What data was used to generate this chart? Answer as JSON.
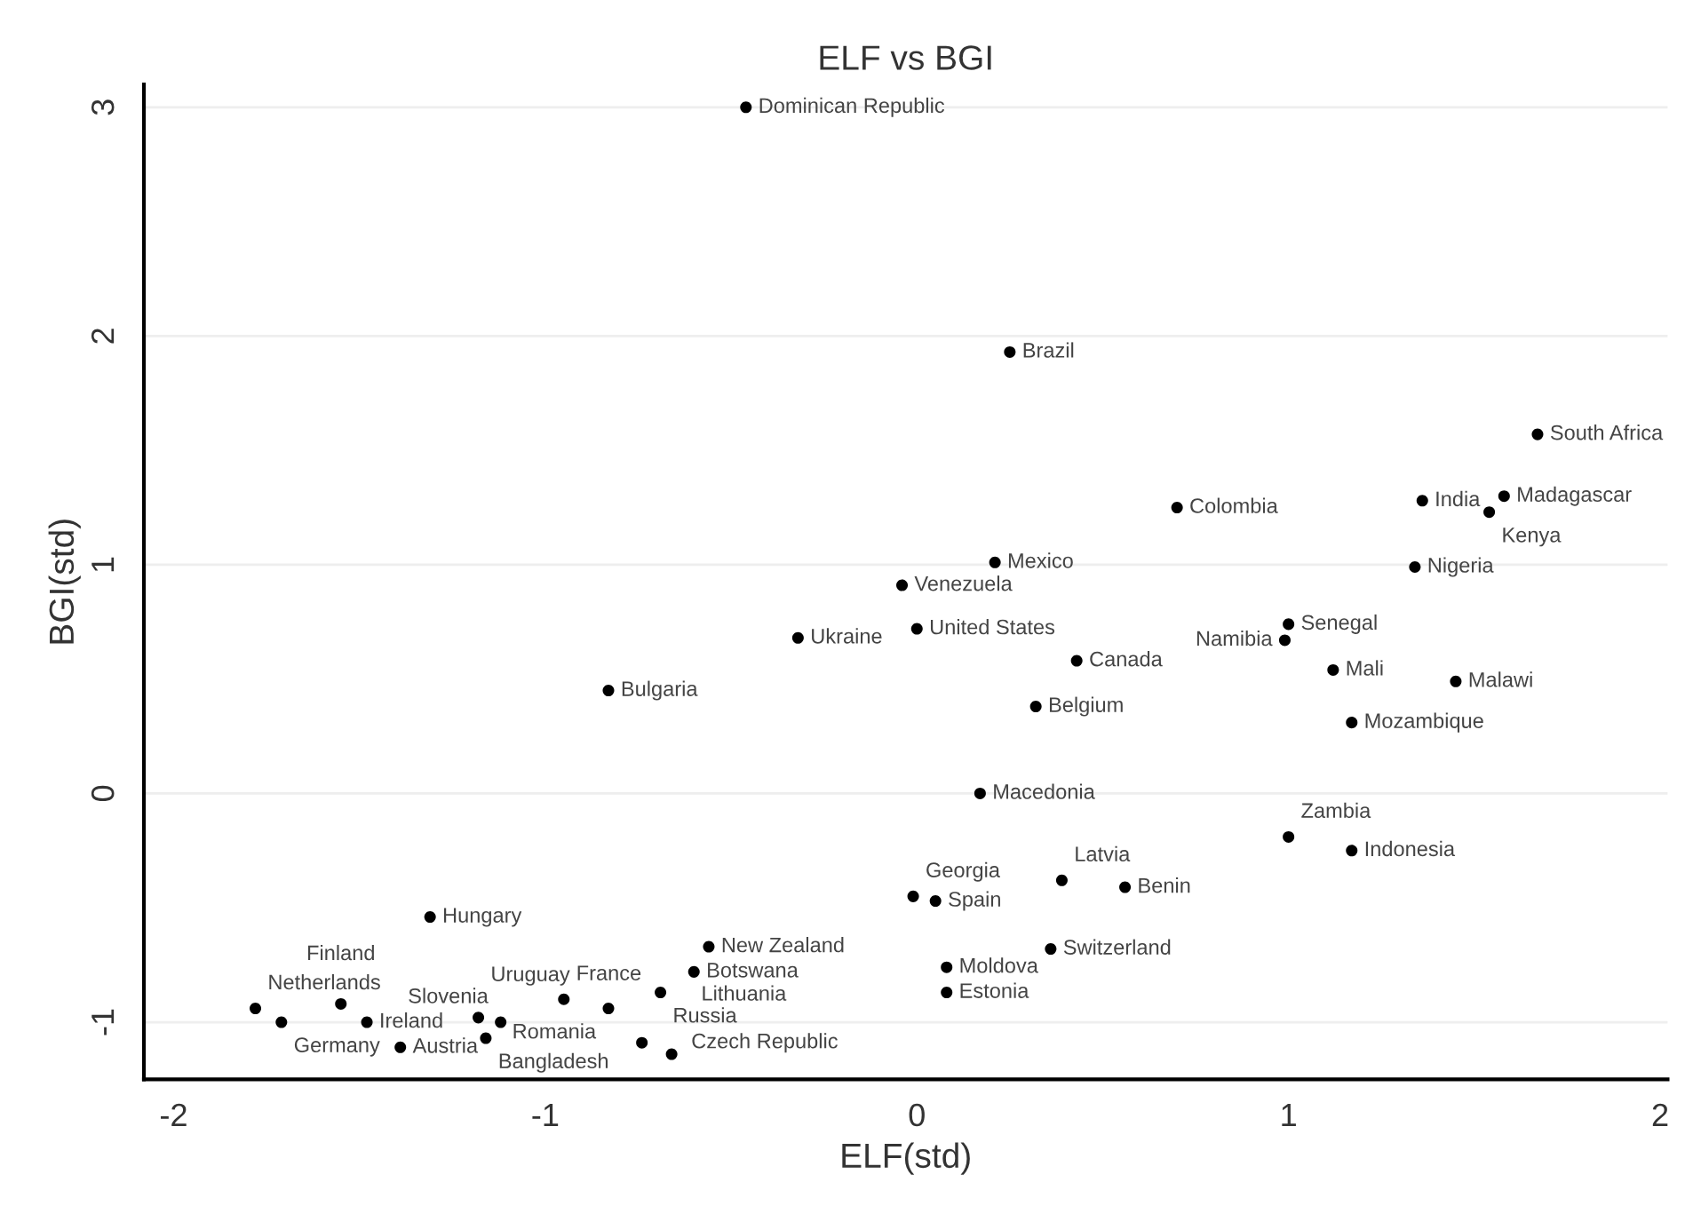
{
  "chart_data": {
    "type": "scatter",
    "title": "ELF vs BGI",
    "xlabel": "ELF(std)",
    "ylabel": "BGI(std)",
    "xlim": [
      -2.08,
      2.02
    ],
    "ylim": [
      -1.25,
      3.1
    ],
    "xticks": [
      -2,
      -1,
      0,
      1,
      2
    ],
    "yticks": [
      -1,
      0,
      1,
      2,
      3
    ],
    "grid": "y",
    "marker": "circle",
    "legend": false,
    "series": [
      {
        "color": "#000000",
        "x": [
          -0.46,
          0.25,
          1.67,
          1.36,
          1.58,
          1.54,
          0.7,
          1.34,
          0.21,
          -0.04,
          -0.32,
          0.0,
          1.0,
          0.99,
          0.43,
          1.12,
          1.45,
          -0.83,
          0.32,
          1.17,
          0.17,
          1.0,
          1.17,
          -0.01,
          0.05,
          0.39,
          0.56,
          0.36,
          0.08,
          0.08,
          -1.31,
          -0.56,
          -0.6,
          -0.69,
          -0.83,
          -0.95,
          -1.12,
          -1.18,
          -1.16,
          -0.74,
          -0.66,
          -1.78,
          -1.71,
          -1.55,
          -1.48,
          -1.39
        ],
        "values": [
          3.0,
          1.93,
          1.57,
          1.28,
          1.3,
          1.23,
          1.25,
          0.99,
          1.01,
          0.91,
          0.68,
          0.72,
          0.74,
          0.67,
          0.58,
          0.54,
          0.49,
          0.45,
          0.38,
          0.31,
          0.0,
          -0.19,
          -0.25,
          -0.45,
          -0.47,
          -0.38,
          -0.41,
          -0.68,
          -0.76,
          -0.87,
          -0.54,
          -0.67,
          -0.78,
          -0.87,
          -0.94,
          -0.9,
          -1.0,
          -0.98,
          -1.07,
          -1.09,
          -1.14,
          -0.94,
          -1.0,
          -0.92,
          -1.0,
          -1.11
        ]
      }
    ],
    "annotations": [
      {
        "text": "Dominican Republic",
        "x": -0.46,
        "y": 3.0
      },
      {
        "text": "Brazil",
        "x": 0.25,
        "y": 1.93
      },
      {
        "text": "South Africa",
        "x": 1.67,
        "y": 1.57
      },
      {
        "text": "India",
        "x": 1.36,
        "y": 1.28
      },
      {
        "text": "Madagascar",
        "x": 1.58,
        "y": 1.3
      },
      {
        "text": "Kenya",
        "x": 1.54,
        "y": 1.23
      },
      {
        "text": "Colombia",
        "x": 0.7,
        "y": 1.25
      },
      {
        "text": "Nigeria",
        "x": 1.34,
        "y": 0.99
      },
      {
        "text": "Mexico",
        "x": 0.21,
        "y": 1.01
      },
      {
        "text": "Venezuela",
        "x": -0.04,
        "y": 0.91
      },
      {
        "text": "Ukraine",
        "x": -0.32,
        "y": 0.68
      },
      {
        "text": "United States",
        "x": 0.0,
        "y": 0.72
      },
      {
        "text": "Senegal",
        "x": 1.0,
        "y": 0.74
      },
      {
        "text": "Namibia",
        "x": 0.99,
        "y": 0.67
      },
      {
        "text": "Canada",
        "x": 0.43,
        "y": 0.58
      },
      {
        "text": "Mali",
        "x": 1.12,
        "y": 0.54
      },
      {
        "text": "Malawi",
        "x": 1.45,
        "y": 0.49
      },
      {
        "text": "Bulgaria",
        "x": -0.83,
        "y": 0.45
      },
      {
        "text": "Belgium",
        "x": 0.32,
        "y": 0.38
      },
      {
        "text": "Mozambique",
        "x": 1.17,
        "y": 0.31
      },
      {
        "text": "Macedonia",
        "x": 0.17,
        "y": 0.0
      },
      {
        "text": "Zambia",
        "x": 1.0,
        "y": -0.19
      },
      {
        "text": "Indonesia",
        "x": 1.17,
        "y": -0.25
      },
      {
        "text": "Georgia",
        "x": -0.01,
        "y": -0.45
      },
      {
        "text": "Spain",
        "x": 0.05,
        "y": -0.47
      },
      {
        "text": "Latvia",
        "x": 0.39,
        "y": -0.38
      },
      {
        "text": "Benin",
        "x": 0.56,
        "y": -0.41
      },
      {
        "text": "Switzerland",
        "x": 0.36,
        "y": -0.68
      },
      {
        "text": "Moldova",
        "x": 0.08,
        "y": -0.76
      },
      {
        "text": "Estonia",
        "x": 0.08,
        "y": -0.87
      },
      {
        "text": "Hungary",
        "x": -1.31,
        "y": -0.54
      },
      {
        "text": "New Zealand",
        "x": -0.56,
        "y": -0.67
      },
      {
        "text": "Botswana",
        "x": -0.6,
        "y": -0.78
      },
      {
        "text": "Russia",
        "x": -0.69,
        "y": -0.87
      },
      {
        "text": "Romania",
        "x": -0.83,
        "y": -0.94
      },
      {
        "text": "France",
        "x": -0.95,
        "y": -0.9
      },
      {
        "text": "Slovenia",
        "x": -1.12,
        "y": -1.0
      },
      {
        "text": "Uruguay",
        "x": -1.18,
        "y": -0.98
      },
      {
        "text": "Bangladesh",
        "x": -1.16,
        "y": -1.07
      },
      {
        "text": "Czech Republic",
        "x": -0.74,
        "y": -1.09
      },
      {
        "text": "Lithuania",
        "x": -0.66,
        "y": -1.14
      },
      {
        "text": "Netherlands",
        "x": -1.78,
        "y": -0.94
      },
      {
        "text": "Germany",
        "x": -1.71,
        "y": -1.0
      },
      {
        "text": "Finland",
        "x": -1.55,
        "y": -0.92
      },
      {
        "text": "Ireland",
        "x": -1.48,
        "y": -1.0
      },
      {
        "text": "Austria",
        "x": -1.39,
        "y": -1.11
      }
    ]
  }
}
